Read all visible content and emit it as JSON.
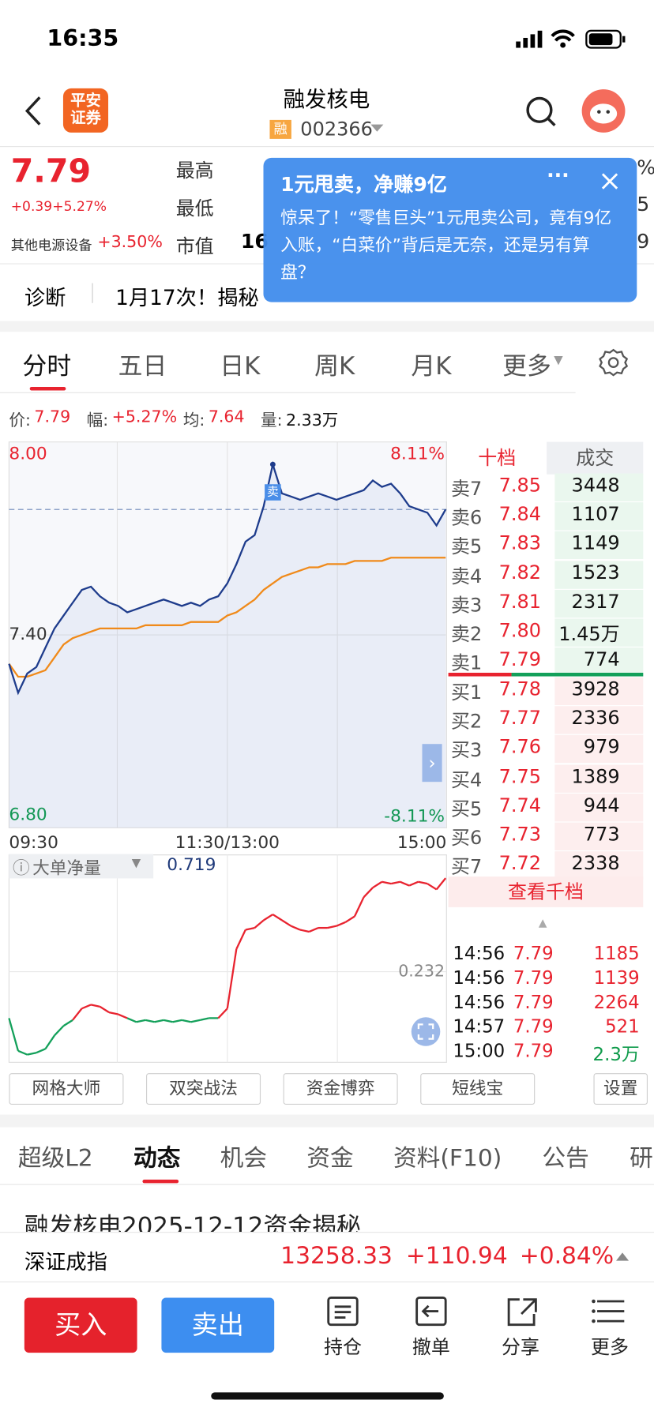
{
  "status": {
    "time": "16:35"
  },
  "header": {
    "logo": [
      "平安",
      "证券"
    ],
    "name": "融发核电",
    "badge": "融",
    "code": "002366"
  },
  "quote": {
    "price": "7.79",
    "change": "+0.39",
    "pct": "+5.27%",
    "sector": "其他电源设备",
    "sector_pct": "+3.50%",
    "labels": [
      "最高",
      "最低",
      "市值"
    ],
    "cap_partial": "16",
    "right_edge": [
      "%",
      "5",
      "9"
    ]
  },
  "popup": {
    "title": "1元甩卖，净赚9亿",
    "more": "···",
    "body": "惊呆了！“零售巨头”1元甩卖公司，竟有9亿入账，“白菜价”背后是无奈，还是另有算盘？"
  },
  "diagnosis": {
    "label": "诊断",
    "text": "1月17次！揭秘"
  },
  "tabs": [
    "分时",
    "五日",
    "日K",
    "周K",
    "月K",
    "更多"
  ],
  "info": [
    {
      "label": "价:",
      "value": "7.79"
    },
    {
      "label": "幅:",
      "value": "+5.27%"
    },
    {
      "label": "均:",
      "value": "7.64"
    },
    {
      "label": "量:",
      "value": "2.33万"
    }
  ],
  "chart": {
    "ylim": [
      6.8,
      8.0
    ],
    "yticks": [
      {
        "value": 8,
        "label": "8.00"
      },
      {
        "value": 7.4,
        "label": "7.40"
      },
      {
        "value": 6.8,
        "label": "6.80"
      }
    ],
    "pct_labels": [
      "8.11%",
      "-8.11%"
    ],
    "xlabels": [
      "09:30",
      "11:30/13:00",
      "15:00"
    ],
    "signal": "卖",
    "price": [
      7.31,
      7.22,
      7.28,
      7.3,
      7.36,
      7.42,
      7.46,
      7.5,
      7.54,
      7.55,
      7.52,
      7.5,
      7.49,
      7.47,
      7.48,
      7.49,
      7.5,
      7.51,
      7.5,
      7.49,
      7.5,
      7.49,
      7.51,
      7.52,
      7.56,
      7.62,
      7.69,
      7.71,
      7.8,
      7.93,
      7.84,
      7.83,
      7.82,
      7.83,
      7.84,
      7.83,
      7.82,
      7.83,
      7.84,
      7.85,
      7.88,
      7.86,
      7.87,
      7.84,
      7.8,
      7.79,
      7.78,
      7.74,
      7.79
    ],
    "average": [
      7.31,
      7.27,
      7.27,
      7.28,
      7.29,
      7.33,
      7.37,
      7.39,
      7.4,
      7.41,
      7.42,
      7.42,
      7.42,
      7.42,
      7.42,
      7.43,
      7.43,
      7.43,
      7.43,
      7.43,
      7.44,
      7.44,
      7.44,
      7.44,
      7.46,
      7.47,
      7.49,
      7.51,
      7.54,
      7.56,
      7.58,
      7.59,
      7.6,
      7.61,
      7.61,
      7.62,
      7.62,
      7.62,
      7.63,
      7.63,
      7.63,
      7.63,
      7.64,
      7.64,
      7.64,
      7.64,
      7.64,
      7.64,
      7.64
    ]
  },
  "flow": {
    "name": "大单净量",
    "current": "0.719",
    "ylim": [
      -0.24,
      0.84
    ],
    "yticks": [
      0.232
    ],
    "values": [
      -0.01,
      -0.18,
      -0.2,
      -0.19,
      -0.17,
      -0.1,
      -0.05,
      -0.02,
      0.04,
      0.06,
      0.05,
      0.02,
      0.01,
      -0.01,
      -0.03,
      -0.02,
      -0.03,
      -0.02,
      -0.03,
      -0.02,
      -0.03,
      -0.02,
      -0.01,
      -0.01,
      0.04,
      0.35,
      0.45,
      0.46,
      0.5,
      0.53,
      0.5,
      0.47,
      0.45,
      0.44,
      0.46,
      0.46,
      0.47,
      0.49,
      0.52,
      0.62,
      0.67,
      0.7,
      0.69,
      0.7,
      0.68,
      0.7,
      0.69,
      0.66,
      0.719
    ]
  },
  "book": {
    "headers": [
      "十档",
      "成交"
    ],
    "asks": [
      [
        "卖7",
        "7.85",
        "3448"
      ],
      [
        "卖6",
        "7.84",
        "1107"
      ],
      [
        "卖5",
        "7.83",
        "1149"
      ],
      [
        "卖4",
        "7.82",
        "1523"
      ],
      [
        "卖3",
        "7.81",
        "2317"
      ],
      [
        "卖2",
        "7.80",
        "1.45万"
      ],
      [
        "卖1",
        "7.79",
        "774"
      ]
    ],
    "bids": [
      [
        "买1",
        "7.78",
        "3928"
      ],
      [
        "买2",
        "7.77",
        "2336"
      ],
      [
        "买3",
        "7.76",
        "979"
      ],
      [
        "买4",
        "7.75",
        "1389"
      ],
      [
        "买5",
        "7.74",
        "944"
      ],
      [
        "买6",
        "7.73",
        "773"
      ],
      [
        "买7",
        "7.72",
        "2338"
      ]
    ],
    "more": "查看千档",
    "trades": [
      [
        "14:56",
        "7.79",
        "1185"
      ],
      [
        "14:56",
        "7.79",
        "1139"
      ],
      [
        "14:56",
        "7.79",
        "2264"
      ],
      [
        "14:57",
        "7.79",
        "521"
      ],
      [
        "15:00",
        "7.79",
        "2.3万"
      ]
    ]
  },
  "tools": [
    "网格大师",
    "双突战法",
    "资金博弈",
    "短线宝",
    "设置"
  ],
  "tabs2": [
    "超级L2",
    "动态",
    "机会",
    "资金",
    "资料(F10)",
    "公告",
    "研"
  ],
  "news": "融发核电2025-12-12资金揭秘",
  "index": {
    "name": "深证成指",
    "value": "13258.33",
    "change": "+110.94",
    "pct": "+0.84%"
  },
  "bottom": {
    "buy": "买入",
    "sell": "卖出",
    "actions": [
      "持仓",
      "撤单",
      "分享",
      "更多"
    ]
  }
}
